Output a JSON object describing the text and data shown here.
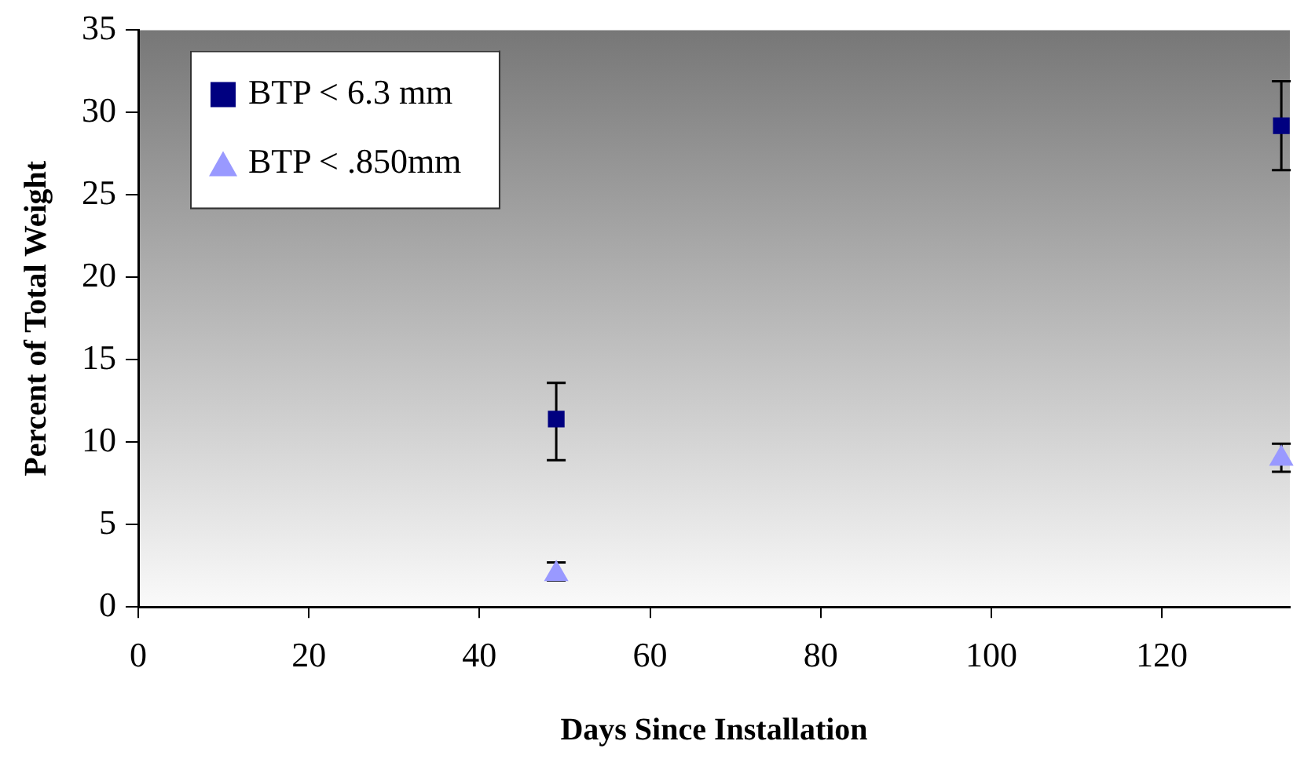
{
  "chart_data": {
    "type": "scatter",
    "xlabel": "Days Since Installation",
    "ylabel": "Percent of Total Weight",
    "xlim": [
      0,
      135
    ],
    "xticks": [
      0,
      20,
      40,
      60,
      80,
      100,
      120
    ],
    "ylim": [
      0,
      35
    ],
    "yticks": [
      0,
      5,
      10,
      15,
      20,
      25,
      30,
      35
    ],
    "grid": false,
    "legend": "top left",
    "x": [
      49,
      134
    ],
    "series": [
      {
        "name": "BTP < 6.3 mm",
        "color": "#000080",
        "marker": "square",
        "values": [
          11.4,
          29.2
        ],
        "errors": [
          [
            8.9,
            13.6
          ],
          [
            26.5,
            31.9
          ]
        ]
      },
      {
        "name": "BTP < .850mm",
        "color": "#9999ff",
        "marker": "triangle",
        "values": [
          2.0,
          9.0
        ],
        "errors": [
          [
            1.6,
            2.7
          ],
          [
            8.2,
            9.9
          ]
        ]
      }
    ]
  }
}
